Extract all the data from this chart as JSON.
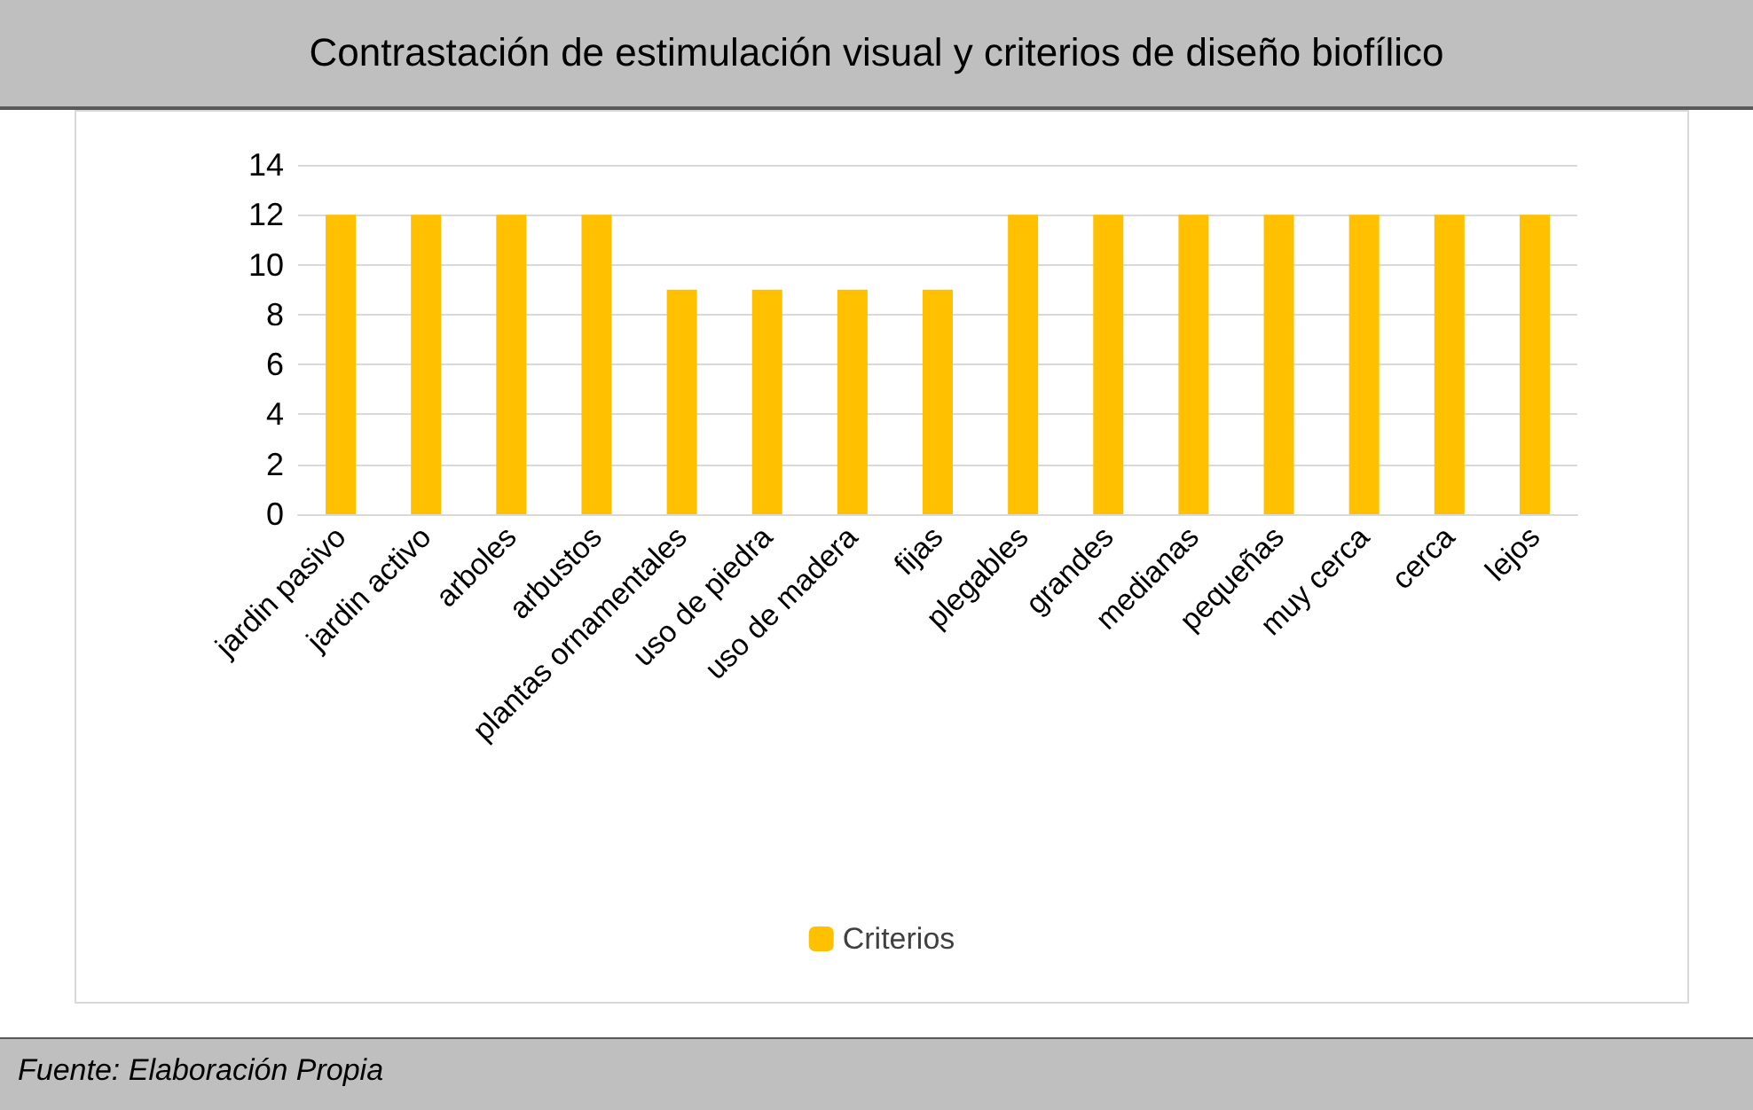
{
  "chart_data": {
    "type": "bar",
    "title": "Contrastación de estimulación visual y criterios de diseño biofílico",
    "categories": [
      "jardin pasivo",
      "jardin activo",
      "arboles",
      "arbustos",
      "plantas ornamentales",
      "uso de piedra",
      "uso de madera",
      "fijas",
      "plegables",
      "grandes",
      "medianas",
      "pequeñas",
      "muy cerca",
      "cerca",
      "lejos"
    ],
    "series": [
      {
        "name": "Criterios",
        "color": "#ffc000",
        "values": [
          12,
          12,
          12,
          12,
          9,
          9,
          9,
          9,
          12,
          12,
          12,
          12,
          12,
          12,
          12
        ]
      }
    ],
    "ylim": [
      0,
      14
    ],
    "yticks": [
      0,
      2,
      4,
      6,
      8,
      10,
      12,
      14
    ],
    "grid": "y",
    "legend": "bottom",
    "annotations": [
      "Fuente: Elaboración Propia"
    ]
  }
}
